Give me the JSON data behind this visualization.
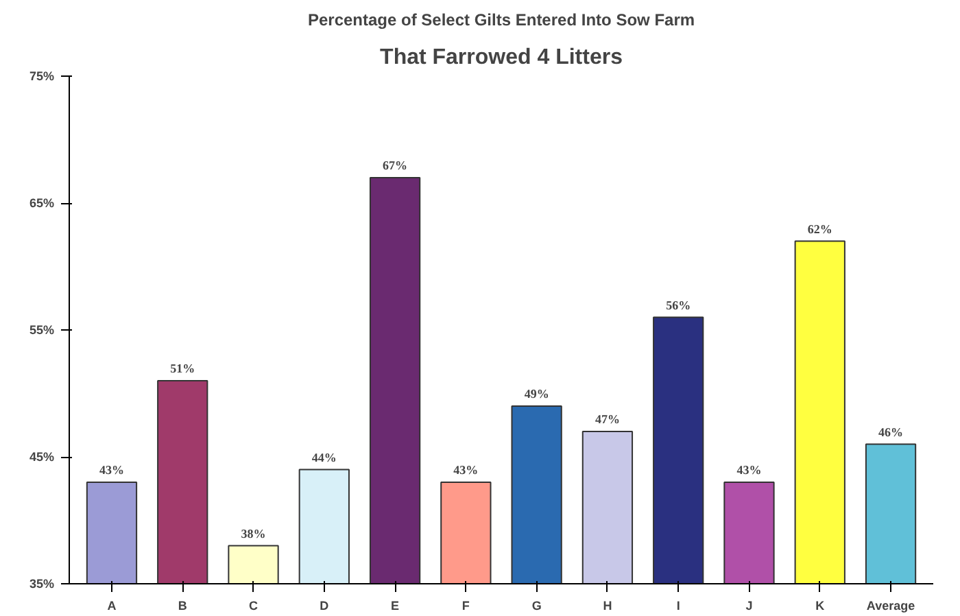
{
  "chart_data": {
    "type": "bar",
    "title": "That Farrowed 4 Litters",
    "subtitle": "Percentage of Select Gilts Entered Into Sow Farm",
    "categories": [
      "A",
      "B",
      "C",
      "D",
      "E",
      "F",
      "G",
      "H",
      "I",
      "J",
      "K",
      "Average"
    ],
    "values": [
      43,
      51,
      38,
      44,
      67,
      43,
      49,
      47,
      56,
      43,
      62,
      46
    ],
    "value_labels": [
      "43%",
      "51%",
      "38%",
      "44%",
      "67%",
      "43%",
      "49%",
      "47%",
      "56%",
      "43%",
      "62%",
      "46%"
    ],
    "colors": [
      "#9b9bd6",
      "#a03a6a",
      "#ffffc8",
      "#d8f0f8",
      "#6a2a70",
      "#ff9a8a",
      "#2a6ab0",
      "#c8c8e8",
      "#2a3080",
      "#b050a8",
      "#ffff40",
      "#60c0d8"
    ],
    "ylim": [
      35,
      75
    ],
    "yticks": [
      {
        "value": 35,
        "label": "35%"
      },
      {
        "value": 45,
        "label": "45%"
      },
      {
        "value": 55,
        "label": "55%"
      },
      {
        "value": 65,
        "label": "65%"
      },
      {
        "value": 75,
        "label": "75%"
      }
    ],
    "grid": false
  }
}
